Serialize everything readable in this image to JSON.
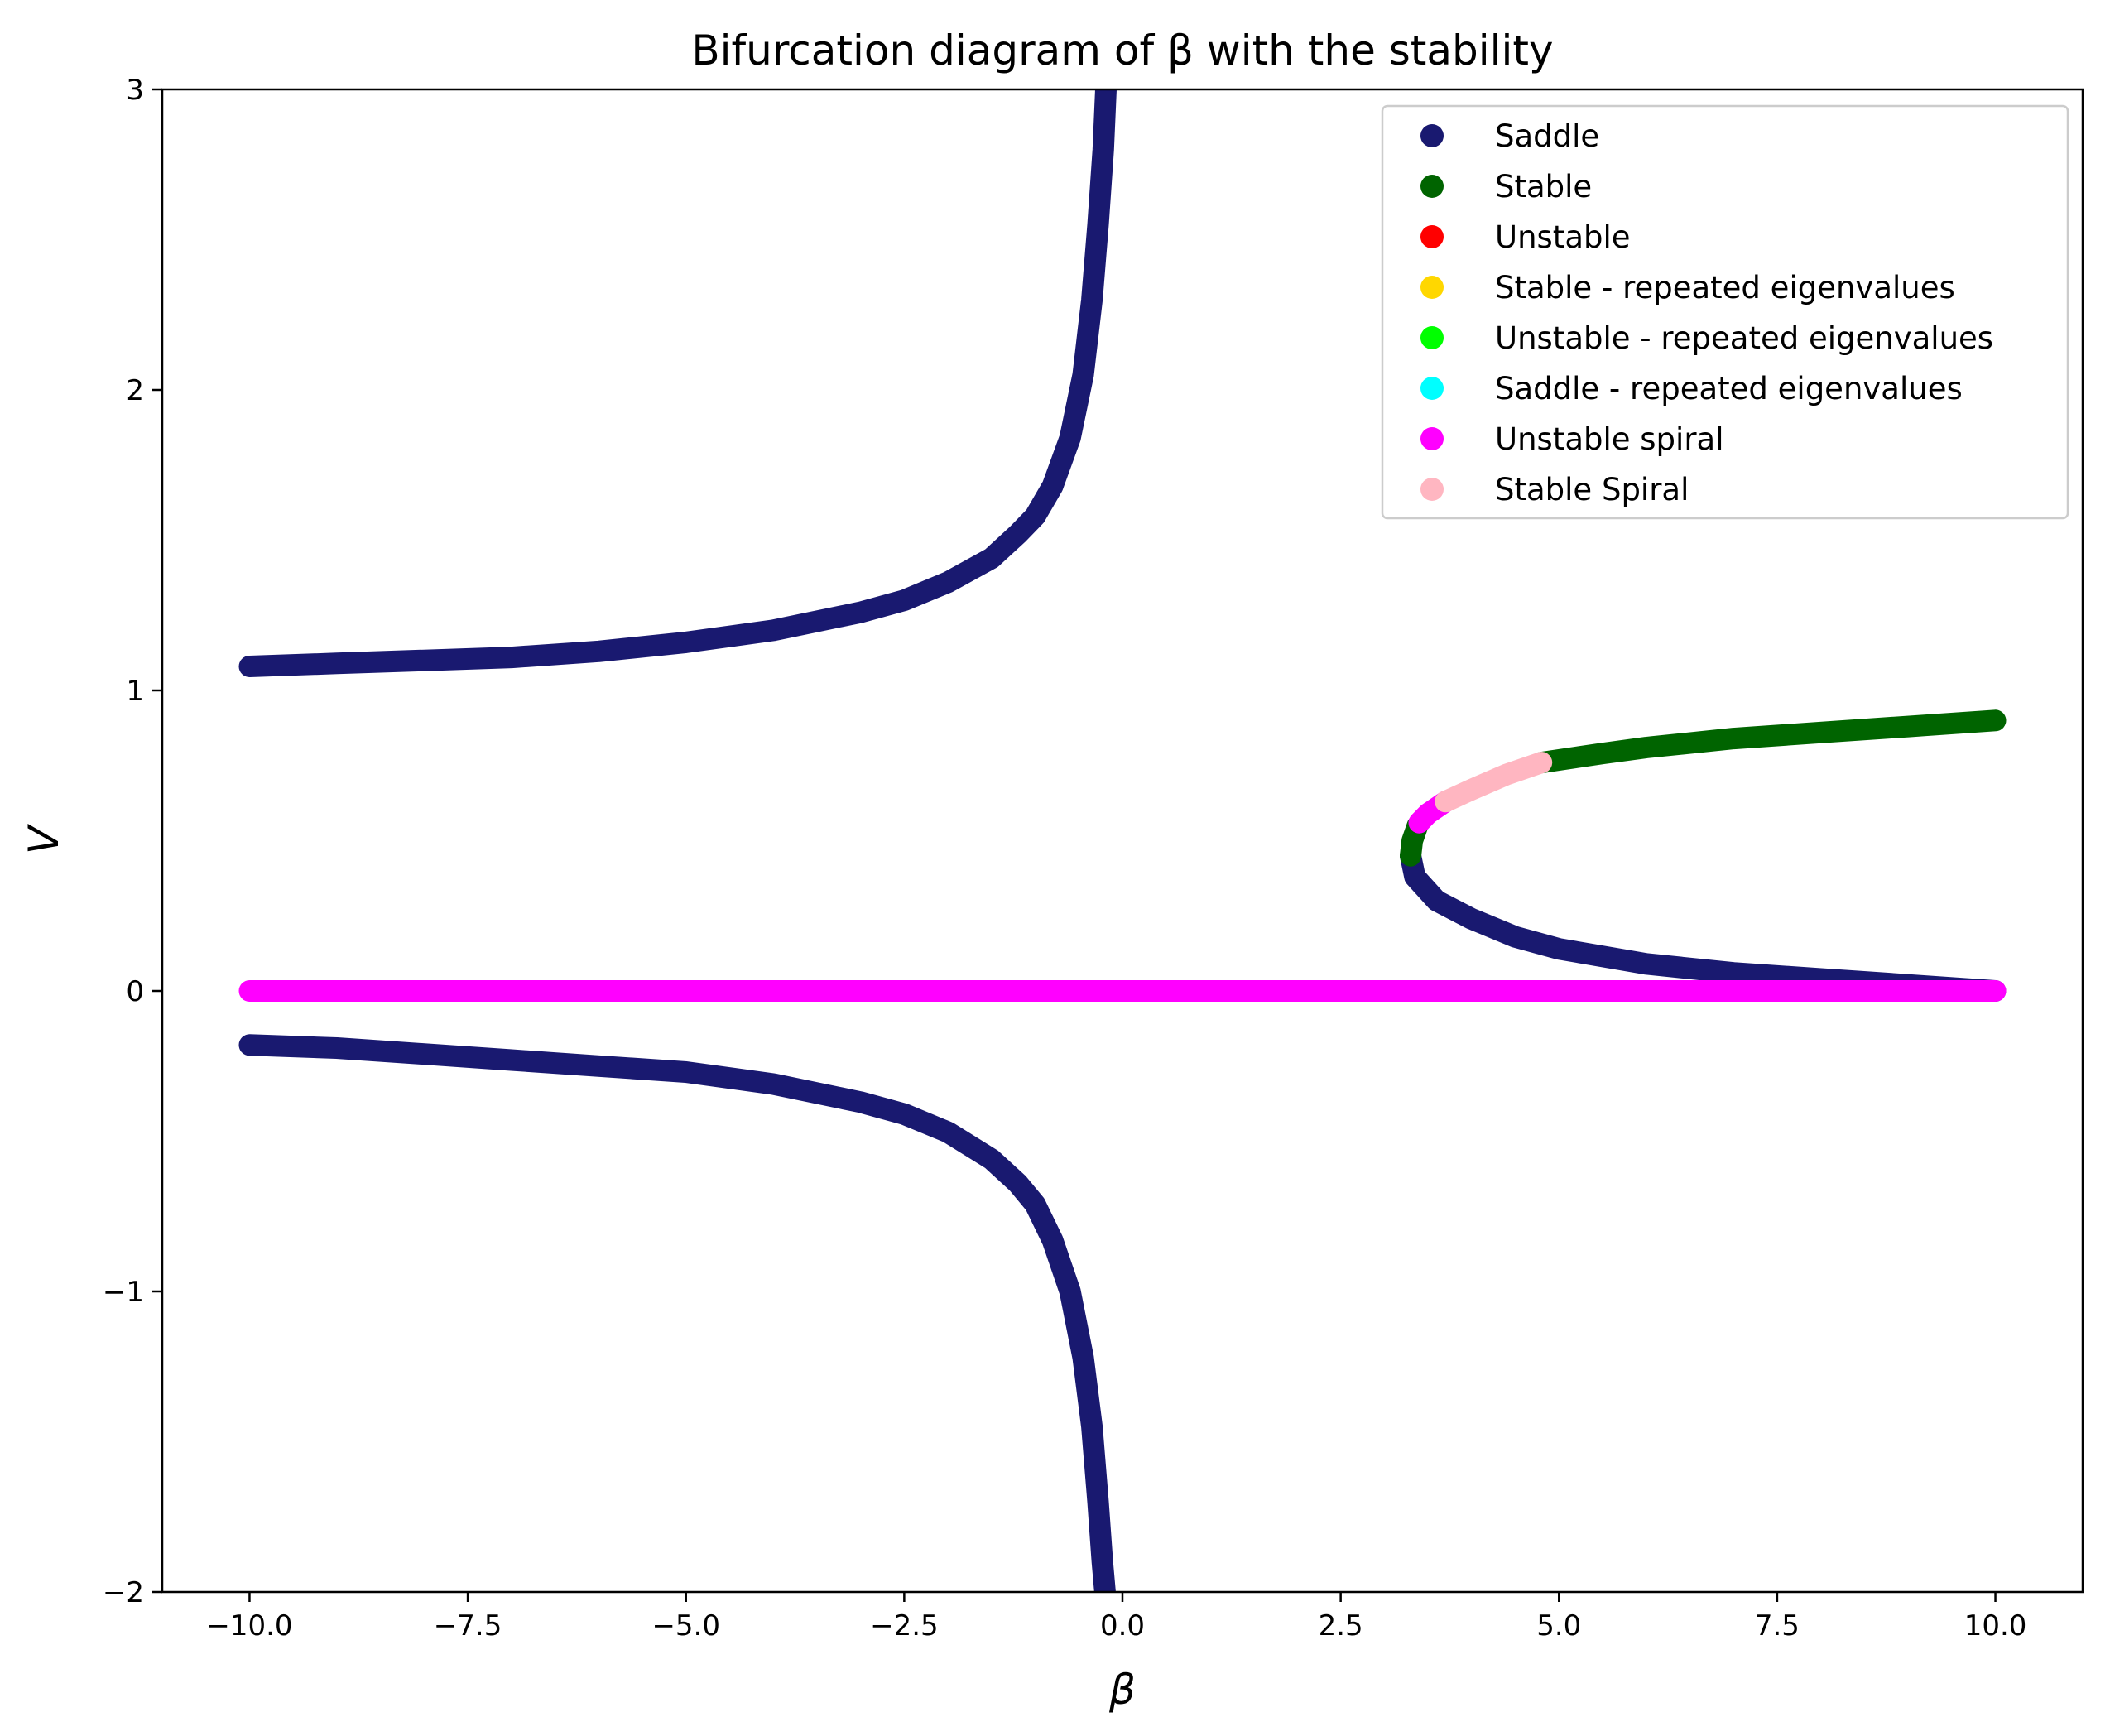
{
  "chart_data": {
    "type": "scatter",
    "title": "Bifurcation diagram of β with the stability",
    "xlabel": "β",
    "ylabel": "V",
    "xlim": [
      -11.0,
      11.0
    ],
    "ylim": [
      -2.0,
      3.0
    ],
    "x_ticks": [
      -10.0,
      -7.5,
      -5.0,
      -2.5,
      0.0,
      2.5,
      5.0,
      7.5,
      10.0
    ],
    "x_tick_labels": [
      "−10.0",
      "−7.5",
      "−5.0",
      "−2.5",
      "0.0",
      "2.5",
      "5.0",
      "7.5",
      "10.0"
    ],
    "y_ticks": [
      -2,
      -1,
      0,
      1,
      2,
      3
    ],
    "y_tick_labels": [
      "−2",
      "−1",
      "0",
      "1",
      "2",
      "3"
    ],
    "grid": false,
    "legend_position": "top-right",
    "legend": [
      {
        "label": "Saddle",
        "color": "#191970"
      },
      {
        "label": "Stable",
        "color": "#006400"
      },
      {
        "label": "Unstable",
        "color": "#ff0000"
      },
      {
        "label": "Stable - repeated eigenvalues",
        "color": "#ffd700"
      },
      {
        "label": "Unstable - repeated eigenvalues",
        "color": "#00ff00"
      },
      {
        "label": "Saddle - repeated eigenvalues",
        "color": "#00ffff"
      },
      {
        "label": "Unstable spiral",
        "color": "#ff00ff"
      },
      {
        "label": "Stable Spiral",
        "color": "#ffb6c1"
      }
    ],
    "series": [
      {
        "name": "Saddle",
        "color": "#191970",
        "points": [
          [
            -10.0,
            1.08
          ],
          [
            -9.0,
            1.09
          ],
          [
            -8.0,
            1.1
          ],
          [
            -7.0,
            1.11
          ],
          [
            -6.0,
            1.13
          ],
          [
            -5.0,
            1.16
          ],
          [
            -4.0,
            1.2
          ],
          [
            -3.0,
            1.26
          ],
          [
            -2.5,
            1.3
          ],
          [
            -2.0,
            1.36
          ],
          [
            -1.5,
            1.44
          ],
          [
            -1.2,
            1.52
          ],
          [
            -1.0,
            1.58
          ],
          [
            -0.8,
            1.68
          ],
          [
            -0.6,
            1.84
          ],
          [
            -0.45,
            2.05
          ],
          [
            -0.35,
            2.3
          ],
          [
            -0.28,
            2.55
          ],
          [
            -0.22,
            2.8
          ],
          [
            -0.19,
            3.0
          ]
        ]
      },
      {
        "name": "Saddle",
        "color": "#191970",
        "points": [
          [
            -10.0,
            -0.18
          ],
          [
            -9.0,
            -0.19
          ],
          [
            -8.0,
            -0.21
          ],
          [
            -7.0,
            -0.23
          ],
          [
            -6.0,
            -0.25
          ],
          [
            -5.0,
            -0.27
          ],
          [
            -4.0,
            -0.31
          ],
          [
            -3.0,
            -0.37
          ],
          [
            -2.5,
            -0.41
          ],
          [
            -2.0,
            -0.47
          ],
          [
            -1.5,
            -0.56
          ],
          [
            -1.2,
            -0.64
          ],
          [
            -1.0,
            -0.71
          ],
          [
            -0.8,
            -0.83
          ],
          [
            -0.6,
            -1.0
          ],
          [
            -0.45,
            -1.22
          ],
          [
            -0.35,
            -1.45
          ],
          [
            -0.28,
            -1.7
          ],
          [
            -0.23,
            -1.9
          ],
          [
            -0.2,
            -2.0
          ]
        ]
      },
      {
        "name": "Saddle",
        "color": "#191970",
        "points": [
          [
            3.3,
            0.45
          ],
          [
            3.35,
            0.38
          ],
          [
            3.6,
            0.3
          ],
          [
            4.0,
            0.24
          ],
          [
            4.5,
            0.18
          ],
          [
            5.0,
            0.14
          ],
          [
            6.0,
            0.09
          ],
          [
            7.0,
            0.06
          ],
          [
            8.0,
            0.04
          ],
          [
            9.0,
            0.02
          ],
          [
            10.0,
            0.0
          ]
        ]
      },
      {
        "name": "Stable",
        "color": "#006400",
        "points": [
          [
            3.3,
            0.45
          ],
          [
            3.32,
            0.5
          ],
          [
            3.38,
            0.55
          ]
        ]
      },
      {
        "name": "Stable",
        "color": "#006400",
        "points": [
          [
            4.8,
            0.76
          ],
          [
            5.5,
            0.79
          ],
          [
            6.0,
            0.81
          ],
          [
            7.0,
            0.84
          ],
          [
            8.0,
            0.86
          ],
          [
            9.0,
            0.88
          ],
          [
            10.0,
            0.9
          ]
        ]
      },
      {
        "name": "Unstable spiral",
        "color": "#ff00ff",
        "points": [
          [
            3.4,
            0.56
          ],
          [
            3.5,
            0.59
          ],
          [
            3.7,
            0.63
          ]
        ]
      },
      {
        "name": "Stable Spiral",
        "color": "#ffb6c1",
        "points": [
          [
            3.7,
            0.63
          ],
          [
            4.0,
            0.67
          ],
          [
            4.4,
            0.72
          ],
          [
            4.8,
            0.76
          ]
        ]
      },
      {
        "name": "Unstable spiral",
        "color": "#ff00ff",
        "points": [
          [
            -10.0,
            0.0
          ],
          [
            10.0,
            0.0
          ]
        ]
      }
    ]
  }
}
